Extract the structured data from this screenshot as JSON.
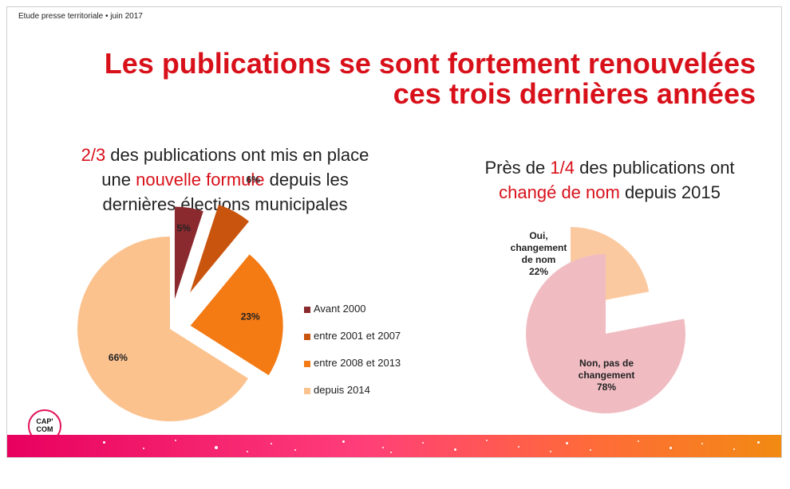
{
  "header": {
    "note": "Etude presse territoriale • juin 2017"
  },
  "title": {
    "line1": "Les publications se sont fortement renouvelées",
    "line2": "ces trois dernières années"
  },
  "left_subtitle": {
    "red1": "2/3",
    "text1": " des publications ont mis en place",
    "text2a": "une ",
    "red2": "nouvelle formule",
    "text2b": " depuis les",
    "text3": "dernières élections municipales"
  },
  "right_subtitle": {
    "text1a": "Près de ",
    "red1": "1/4",
    "text1b": " des publications ont",
    "red2": "changé de nom",
    "text2": " depuis 2015"
  },
  "logo": {
    "line1": "CAP'",
    "line2": "COM"
  },
  "chart_data": [
    {
      "type": "pie",
      "title": "",
      "categories": [
        "Avant 2000",
        "entre 2001 et 2007",
        "entre 2008 et 2013",
        "depuis 2014"
      ],
      "values": [
        5,
        6,
        23,
        66
      ],
      "labels": [
        "5%",
        "6%",
        "23%",
        "66%"
      ],
      "colors": [
        "#8b2a2e",
        "#c9540e",
        "#f47a14",
        "#fbc28e"
      ],
      "legend_position": "right",
      "exploded": true
    },
    {
      "type": "pie",
      "title": "",
      "categories": [
        "Oui, changement de nom",
        "Non, pas de changement"
      ],
      "values": [
        22,
        78
      ],
      "labels": [
        "22%",
        "78%"
      ],
      "colors": [
        "#fbc9a0",
        "#f0bcc2"
      ],
      "inner_labels": [
        {
          "line1": "Oui,",
          "line2": "changement",
          "line3": "de nom",
          "line4": "22%"
        },
        {
          "line1": "Non, pas de",
          "line2": "changement",
          "line3": "78%"
        }
      ],
      "exploded": true
    }
  ]
}
